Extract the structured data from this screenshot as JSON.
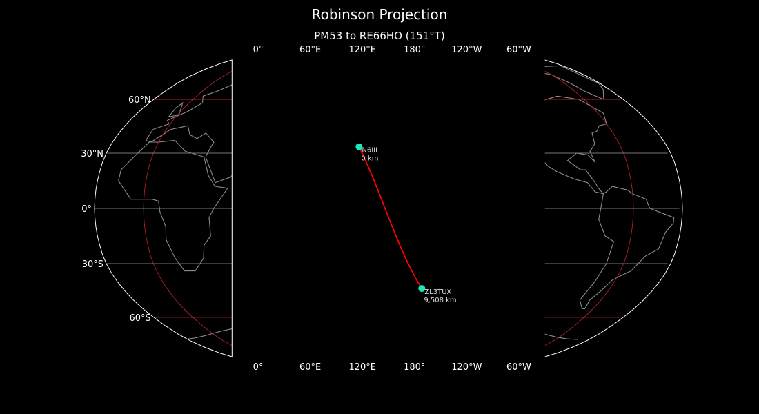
{
  "title": "Robinson Projection",
  "subtitle": "PM53 to RE66HO (151°T)",
  "map": {
    "projection": "Robinson",
    "central_longitude": 150,
    "colors": {
      "background": "#000000",
      "outline": "#ffffff",
      "coastline": "#8c8c8c",
      "gridline": "#b22222",
      "path": "#ff0000",
      "station": "#1de9b6"
    },
    "lon_ticks": [
      "0°",
      "60°E",
      "120°E",
      "180°",
      "120°W",
      "60°W"
    ],
    "lat_ticks": [
      "60°N",
      "30°N",
      "0°",
      "30°S",
      "60°S"
    ]
  },
  "stations": [
    {
      "call": "N6III",
      "distance": "0 km",
      "lat": 33.5,
      "lon": 131
    },
    {
      "call": "ZL3TUX",
      "distance": "9,508 km",
      "lat": -43.6,
      "lon": 172.6
    }
  ]
}
